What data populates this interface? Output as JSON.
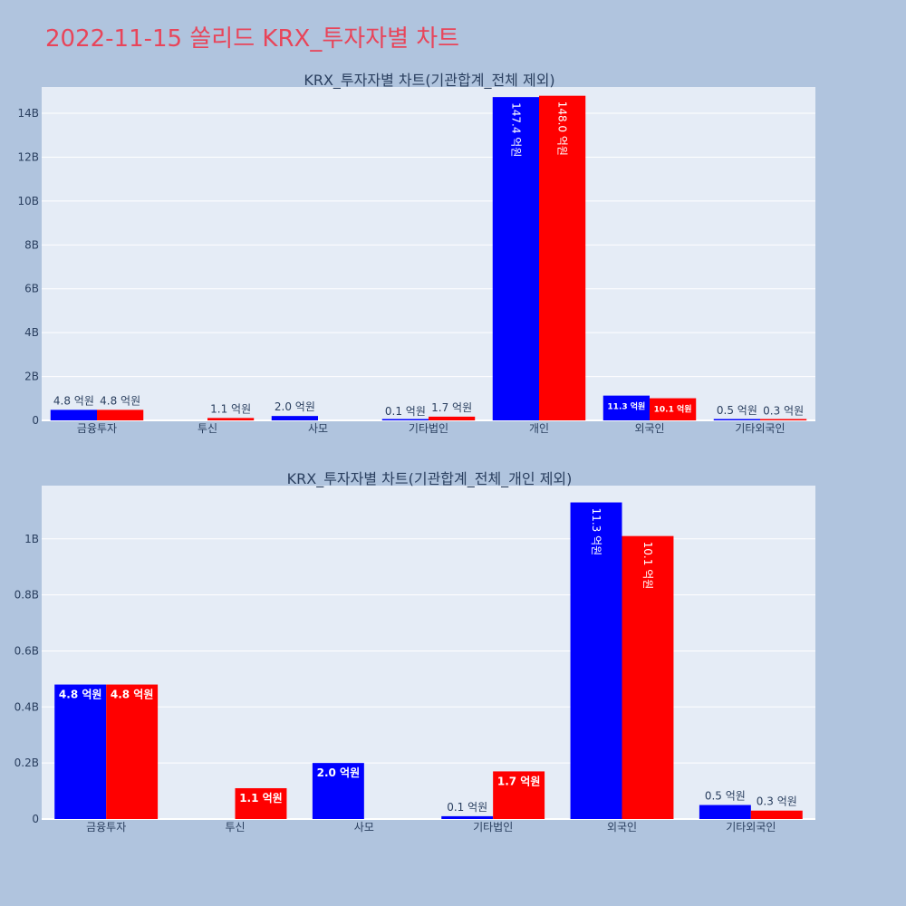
{
  "page": {
    "title": "2022-11-15 쏠리드 KRX_투자자별 차트"
  },
  "colors": {
    "page_background": "#b0c4de",
    "plot_background": "#e5ecf6",
    "title": "#e8455a",
    "series_blue": "#0000ff",
    "series_red": "#ff0000"
  },
  "chart_data": [
    {
      "type": "bar",
      "title": "KRX_투자자별 차트(기관합계_전체 제외)",
      "categories": [
        "금융투자",
        "투신",
        "사모",
        "기타법인",
        "개인",
        "외국인",
        "기타외국인"
      ],
      "series": [
        {
          "color": "#0000ff",
          "values": [
            0.48,
            0,
            0.2,
            0.01,
            14.74,
            1.13,
            0.05
          ],
          "labels": [
            "4.8 억원",
            "",
            "2.0 억원",
            "0.1 억원",
            "147.4 억원",
            "11.3 억원",
            "0.5 억원"
          ]
        },
        {
          "color": "#ff0000",
          "values": [
            0.48,
            0.11,
            0,
            0.17,
            14.8,
            1.01,
            0.03
          ],
          "labels": [
            "4.8 억원",
            "1.1 억원",
            "",
            "1.7 억원",
            "148.0 억원",
            "10.1 억원",
            "0.3 억원"
          ]
        }
      ],
      "value_unit": "B",
      "ylim": [
        0,
        15.2
      ],
      "yticks": [
        0,
        2,
        4,
        6,
        8,
        10,
        12,
        14
      ],
      "ytick_labels": [
        "0",
        "2B",
        "4B",
        "6B",
        "8B",
        "10B",
        "12B",
        "14B"
      ],
      "grid": true
    },
    {
      "type": "bar",
      "title": "KRX_투자자별 차트(기관합계_전체_개인 제외)",
      "categories": [
        "금융투자",
        "투신",
        "사모",
        "기타법인",
        "외국인",
        "기타외국인"
      ],
      "series": [
        {
          "color": "#0000ff",
          "values": [
            0.48,
            0,
            0.2,
            0.01,
            1.13,
            0.05
          ],
          "labels": [
            "4.8 억원",
            "",
            "2.0 억원",
            "0.1 억원",
            "11.3 억원",
            "0.5 억원"
          ]
        },
        {
          "color": "#ff0000",
          "values": [
            0.48,
            0.11,
            0,
            0.17,
            1.01,
            0.03
          ],
          "labels": [
            "4.8 억원",
            "1.1 억원",
            "",
            "1.7 억원",
            "10.1 억원",
            "0.3 억원"
          ]
        }
      ],
      "value_unit": "B",
      "ylim": [
        0,
        1.19
      ],
      "yticks": [
        0,
        0.2,
        0.4,
        0.6,
        0.8,
        1.0
      ],
      "ytick_labels": [
        "0",
        "0.2B",
        "0.4B",
        "0.6B",
        "0.8B",
        "1B"
      ],
      "grid": true
    }
  ]
}
